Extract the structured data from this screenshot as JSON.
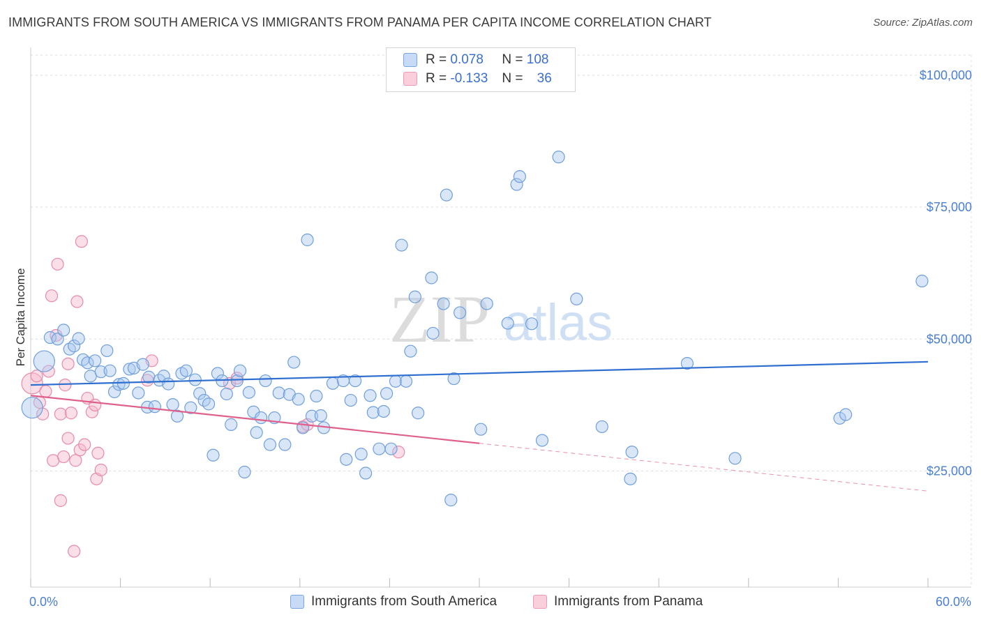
{
  "title": "IMMIGRANTS FROM SOUTH AMERICA VS IMMIGRANTS FROM PANAMA PER CAPITA INCOME CORRELATION CHART",
  "source": "Source: ZipAtlas.com",
  "watermark": {
    "zip": "ZIP",
    "atlas": "atlas"
  },
  "legend": {
    "r_label": "R =",
    "n_label": "N =",
    "rows": [
      {
        "r": "0.078",
        "n": "108"
      },
      {
        "r": "-0.133",
        "n": "36"
      }
    ]
  },
  "colors": {
    "blue_fill": "#a9c8f0",
    "blue_stroke": "#6f9fdc",
    "blue_line": "#2f6fd0",
    "pink_fill": "#f6b8cb",
    "pink_stroke": "#e88aa8",
    "pink_line": "#e0608c",
    "grid": "#dddddd",
    "tick_text": "#4a7fd0"
  },
  "chart_data": {
    "type": "scatter",
    "ylabel": "Per Capita Income",
    "xlim": [
      0,
      60
    ],
    "ylim": [
      3000,
      105000
    ],
    "x_tick_labels": [
      {
        "value": 0,
        "label": "0.0%"
      },
      {
        "value": 60,
        "label": "60.0%"
      }
    ],
    "y_ticks": [
      {
        "value": 25000,
        "label": "$25,000"
      },
      {
        "value": 50000,
        "label": "$50,000"
      },
      {
        "value": 75000,
        "label": "$75,000"
      },
      {
        "value": 100000,
        "label": "$100,000"
      }
    ],
    "grid": true,
    "legend_position": "top-center",
    "series": [
      {
        "name": "Immigrants from South America",
        "color": "#a9c8f0",
        "trend": {
          "x": [
            0,
            60
          ],
          "y": [
            41300,
            45700
          ],
          "solid_until": 60
        },
        "points": [
          {
            "x": 0.1,
            "y": 37000,
            "big": true
          },
          {
            "x": 0.9,
            "y": 45800,
            "big": true
          },
          {
            "x": 1.3,
            "y": 50300
          },
          {
            "x": 1.8,
            "y": 50000
          },
          {
            "x": 2.2,
            "y": 51700
          },
          {
            "x": 2.6,
            "y": 48100
          },
          {
            "x": 2.9,
            "y": 48700
          },
          {
            "x": 3.2,
            "y": 50100
          },
          {
            "x": 3.5,
            "y": 46100
          },
          {
            "x": 3.8,
            "y": 45500
          },
          {
            "x": 4.0,
            "y": 43000
          },
          {
            "x": 4.3,
            "y": 45900
          },
          {
            "x": 4.7,
            "y": 43800
          },
          {
            "x": 5.1,
            "y": 47800
          },
          {
            "x": 5.3,
            "y": 44000
          },
          {
            "x": 5.6,
            "y": 40000
          },
          {
            "x": 5.9,
            "y": 41400
          },
          {
            "x": 6.2,
            "y": 41600
          },
          {
            "x": 6.6,
            "y": 44300
          },
          {
            "x": 6.9,
            "y": 44500
          },
          {
            "x": 7.2,
            "y": 39800
          },
          {
            "x": 7.5,
            "y": 45200
          },
          {
            "x": 7.8,
            "y": 37100
          },
          {
            "x": 7.9,
            "y": 42800
          },
          {
            "x": 8.3,
            "y": 37200
          },
          {
            "x": 8.6,
            "y": 42200
          },
          {
            "x": 8.9,
            "y": 43000
          },
          {
            "x": 9.2,
            "y": 41500
          },
          {
            "x": 9.5,
            "y": 37600
          },
          {
            "x": 9.8,
            "y": 35400
          },
          {
            "x": 10.1,
            "y": 43500
          },
          {
            "x": 10.4,
            "y": 44000
          },
          {
            "x": 10.7,
            "y": 37000
          },
          {
            "x": 11.0,
            "y": 42300
          },
          {
            "x": 11.3,
            "y": 39700
          },
          {
            "x": 11.6,
            "y": 38400
          },
          {
            "x": 11.9,
            "y": 37700
          },
          {
            "x": 12.2,
            "y": 28000
          },
          {
            "x": 12.5,
            "y": 43500
          },
          {
            "x": 12.8,
            "y": 42100
          },
          {
            "x": 13.1,
            "y": 39600
          },
          {
            "x": 13.4,
            "y": 33800
          },
          {
            "x": 13.8,
            "y": 42100
          },
          {
            "x": 14.0,
            "y": 44000
          },
          {
            "x": 14.3,
            "y": 24800
          },
          {
            "x": 14.6,
            "y": 39900
          },
          {
            "x": 14.9,
            "y": 36200
          },
          {
            "x": 15.1,
            "y": 32300
          },
          {
            "x": 15.4,
            "y": 35100
          },
          {
            "x": 15.7,
            "y": 42100
          },
          {
            "x": 16.0,
            "y": 30000
          },
          {
            "x": 16.3,
            "y": 35100
          },
          {
            "x": 16.6,
            "y": 39800
          },
          {
            "x": 17.0,
            "y": 30000
          },
          {
            "x": 17.3,
            "y": 39500
          },
          {
            "x": 17.6,
            "y": 45600
          },
          {
            "x": 17.9,
            "y": 38600
          },
          {
            "x": 18.2,
            "y": 33200
          },
          {
            "x": 18.5,
            "y": 68800
          },
          {
            "x": 18.8,
            "y": 35400
          },
          {
            "x": 19.1,
            "y": 39200
          },
          {
            "x": 19.4,
            "y": 35500
          },
          {
            "x": 19.6,
            "y": 33200
          },
          {
            "x": 20.2,
            "y": 41600
          },
          {
            "x": 20.9,
            "y": 42100
          },
          {
            "x": 21.1,
            "y": 27200
          },
          {
            "x": 21.4,
            "y": 38400
          },
          {
            "x": 21.7,
            "y": 42100
          },
          {
            "x": 22.1,
            "y": 28200
          },
          {
            "x": 22.4,
            "y": 24600
          },
          {
            "x": 22.7,
            "y": 39300
          },
          {
            "x": 22.9,
            "y": 36100
          },
          {
            "x": 23.3,
            "y": 29200
          },
          {
            "x": 23.6,
            "y": 36300
          },
          {
            "x": 23.8,
            "y": 39700
          },
          {
            "x": 24.1,
            "y": 29200
          },
          {
            "x": 24.4,
            "y": 42000
          },
          {
            "x": 24.8,
            "y": 67800
          },
          {
            "x": 25.1,
            "y": 42000
          },
          {
            "x": 25.4,
            "y": 47700
          },
          {
            "x": 25.7,
            "y": 58000
          },
          {
            "x": 25.9,
            "y": 36000
          },
          {
            "x": 26.8,
            "y": 61600
          },
          {
            "x": 26.9,
            "y": 51100
          },
          {
            "x": 27.6,
            "y": 56700
          },
          {
            "x": 27.8,
            "y": 77300
          },
          {
            "x": 28.1,
            "y": 19500
          },
          {
            "x": 28.3,
            "y": 42500
          },
          {
            "x": 28.7,
            "y": 55000
          },
          {
            "x": 30.1,
            "y": 32900
          },
          {
            "x": 30.5,
            "y": 56700
          },
          {
            "x": 31.9,
            "y": 53000
          },
          {
            "x": 32.5,
            "y": 79300
          },
          {
            "x": 32.7,
            "y": 80800
          },
          {
            "x": 33.5,
            "y": 52900
          },
          {
            "x": 34.2,
            "y": 30800
          },
          {
            "x": 35.3,
            "y": 84500
          },
          {
            "x": 36.5,
            "y": 57600
          },
          {
            "x": 38.2,
            "y": 33400
          },
          {
            "x": 40.1,
            "y": 23500
          },
          {
            "x": 40.2,
            "y": 28600
          },
          {
            "x": 43.9,
            "y": 45400
          },
          {
            "x": 47.1,
            "y": 27400
          },
          {
            "x": 54.1,
            "y": 35000
          },
          {
            "x": 54.5,
            "y": 35700
          },
          {
            "x": 59.6,
            "y": 61000
          }
        ]
      },
      {
        "name": "Immigrants from Panama",
        "color": "#f6b8cb",
        "trend": {
          "x": [
            0,
            60
          ],
          "y": [
            39300,
            21200
          ],
          "solid_until": 30
        },
        "points": [
          {
            "x": 0.1,
            "y": 41600,
            "big": true
          },
          {
            "x": 0.4,
            "y": 43000
          },
          {
            "x": 0.6,
            "y": 38000
          },
          {
            "x": 0.8,
            "y": 35800
          },
          {
            "x": 1.0,
            "y": 40100
          },
          {
            "x": 1.2,
            "y": 43900
          },
          {
            "x": 1.4,
            "y": 58200
          },
          {
            "x": 1.5,
            "y": 27000
          },
          {
            "x": 1.7,
            "y": 50700
          },
          {
            "x": 1.8,
            "y": 64200
          },
          {
            "x": 2.0,
            "y": 35800
          },
          {
            "x": 2.0,
            "y": 19400
          },
          {
            "x": 2.2,
            "y": 27700
          },
          {
            "x": 2.3,
            "y": 41300
          },
          {
            "x": 2.5,
            "y": 45300
          },
          {
            "x": 2.5,
            "y": 31200
          },
          {
            "x": 2.7,
            "y": 36000
          },
          {
            "x": 2.9,
            "y": 9800
          },
          {
            "x": 3.0,
            "y": 27000
          },
          {
            "x": 3.1,
            "y": 57100
          },
          {
            "x": 3.3,
            "y": 29000
          },
          {
            "x": 3.4,
            "y": 68500
          },
          {
            "x": 3.6,
            "y": 30000
          },
          {
            "x": 3.8,
            "y": 38800
          },
          {
            "x": 4.1,
            "y": 36200
          },
          {
            "x": 4.3,
            "y": 37500
          },
          {
            "x": 4.4,
            "y": 23500
          },
          {
            "x": 4.5,
            "y": 28400
          },
          {
            "x": 4.7,
            "y": 25200
          },
          {
            "x": 7.8,
            "y": 42200
          },
          {
            "x": 8.1,
            "y": 45900
          },
          {
            "x": 13.3,
            "y": 41600
          },
          {
            "x": 13.8,
            "y": 42600
          },
          {
            "x": 18.2,
            "y": 33400
          },
          {
            "x": 18.5,
            "y": 33800
          },
          {
            "x": 24.6,
            "y": 28600
          }
        ]
      }
    ]
  },
  "bottom_legend": {
    "south_america": "Immigrants from South America",
    "panama": "Immigrants from Panama"
  }
}
